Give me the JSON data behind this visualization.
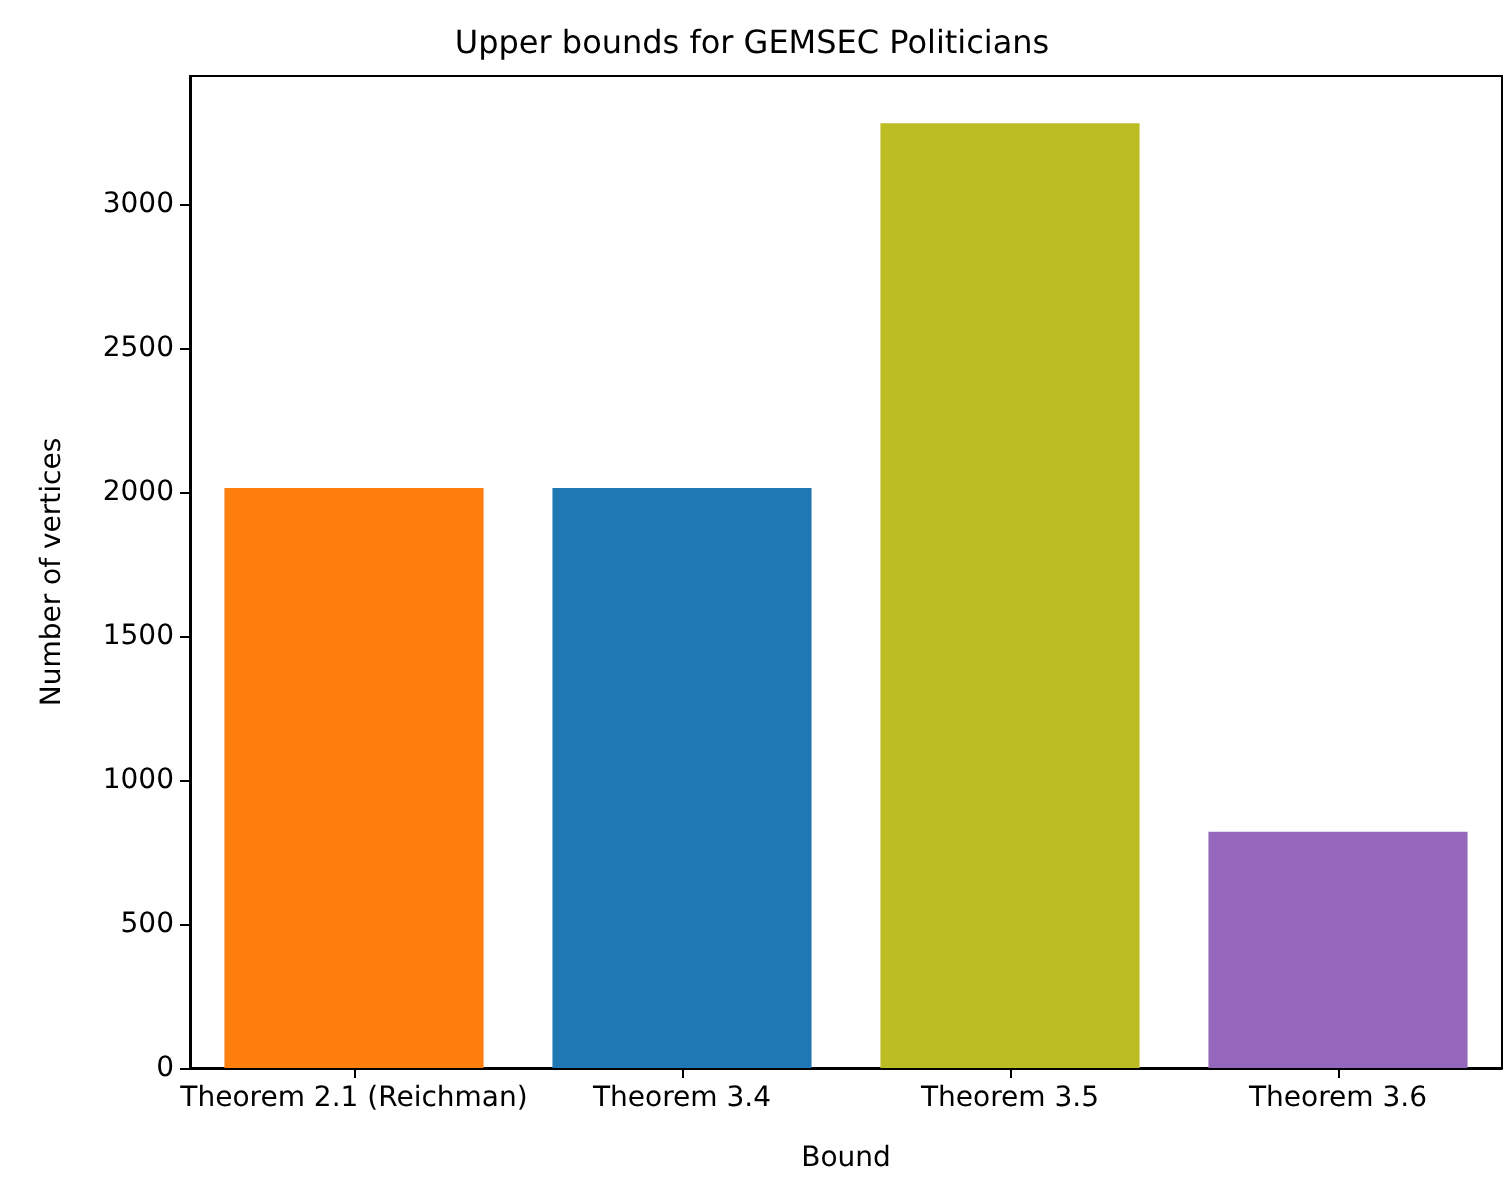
{
  "chart_data": {
    "type": "bar",
    "title": "Upper bounds for GEMSEC Politicians",
    "xlabel": "Bound",
    "ylabel": "Number of vertices",
    "categories": [
      "Theorem 2.1 (Reichman)",
      "Theorem 3.4",
      "Theorem 3.5",
      "Theorem 3.6"
    ],
    "values": [
      2014,
      2014,
      3280,
      820
    ],
    "colors": [
      "#ff7f0e",
      "#1f77b4",
      "#bcbd22",
      "#9467bd"
    ],
    "ylim": [
      0,
      3444
    ],
    "yticks": [
      0,
      500,
      1000,
      1500,
      2000,
      2500,
      3000
    ],
    "grid": false
  }
}
